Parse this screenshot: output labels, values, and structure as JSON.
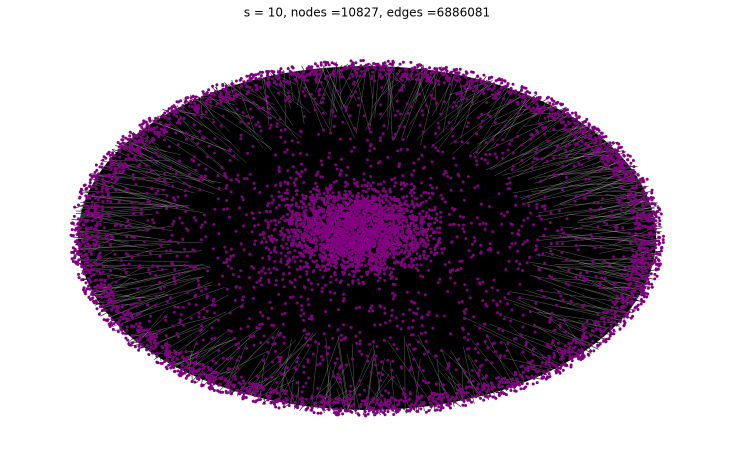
{
  "title": "s = 10, nodes =10827, edges =6886081"
}
